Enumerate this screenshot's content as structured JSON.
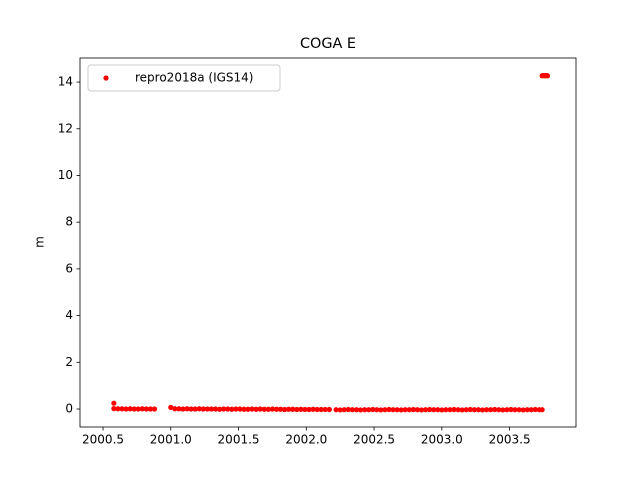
{
  "chart_data": {
    "type": "scatter",
    "title": "COGA E",
    "ylabel": "m",
    "legend": "upper left",
    "xlim": [
      2000.33,
      2003.99
    ],
    "ylim": [
      -0.77,
      15.03
    ],
    "xticks": [
      2000.5,
      {
        "value": 2001,
        "label": "2001.0"
      },
      2001.5,
      {
        "value": 2002,
        "label": "2002.0"
      },
      2002.5,
      {
        "value": 2003,
        "label": "2003.0"
      },
      2003.5
    ],
    "yticks": [
      0,
      2,
      4,
      6,
      8,
      10,
      12,
      14
    ],
    "series": [
      {
        "name": "repro2018a (IGS14)",
        "color": "#ff0000",
        "x": [
          2000.58,
          2000.58,
          2000.61,
          2000.64,
          2000.67,
          2000.7,
          2000.73,
          2000.76,
          2000.79,
          2000.82,
          2000.85,
          2000.88,
          2001.0,
          2001.03,
          2001.06,
          2001.09,
          2001.12,
          2001.15,
          2001.18,
          2001.21,
          2001.24,
          2001.27,
          2001.3,
          2001.33,
          2001.36,
          2001.39,
          2001.42,
          2001.45,
          2001.48,
          2001.51,
          2001.54,
          2001.57,
          2001.6,
          2001.63,
          2001.66,
          2001.69,
          2001.72,
          2001.75,
          2001.78,
          2001.81,
          2001.84,
          2001.87,
          2001.9,
          2001.93,
          2001.96,
          2001.99,
          2002.02,
          2002.05,
          2002.08,
          2002.11,
          2002.14,
          2002.17,
          2002.22,
          2002.25,
          2002.28,
          2002.31,
          2002.34,
          2002.37,
          2002.4,
          2002.43,
          2002.46,
          2002.49,
          2002.52,
          2002.55,
          2002.58,
          2002.61,
          2002.64,
          2002.67,
          2002.7,
          2002.73,
          2002.76,
          2002.79,
          2002.82,
          2002.85,
          2002.88,
          2002.91,
          2002.94,
          2002.97,
          2003.0,
          2003.03,
          2003.06,
          2003.09,
          2003.12,
          2003.15,
          2003.18,
          2003.21,
          2003.24,
          2003.27,
          2003.3,
          2003.33,
          2003.36,
          2003.39,
          2003.42,
          2003.45,
          2003.48,
          2003.51,
          2003.54,
          2003.57,
          2003.6,
          2003.63,
          2003.66,
          2003.69,
          2003.72,
          2003.74,
          2003.74,
          2003.75,
          2003.76,
          2003.77,
          2003.78
        ],
        "values": [
          0.25,
          0.02,
          0.01,
          0.01,
          0.0,
          0.01,
          0.0,
          0.0,
          0.01,
          0.0,
          0.0,
          0.0,
          0.07,
          0.01,
          0.01,
          0.0,
          0.01,
          0.0,
          0.0,
          0.01,
          0.0,
          0.0,
          0.0,
          0.0,
          -0.01,
          0.0,
          0.0,
          -0.01,
          0.0,
          0.0,
          -0.01,
          -0.01,
          0.0,
          -0.01,
          0.0,
          -0.01,
          -0.01,
          0.0,
          -0.01,
          -0.01,
          -0.02,
          -0.01,
          -0.01,
          -0.02,
          -0.01,
          -0.02,
          -0.02,
          -0.01,
          -0.02,
          -0.02,
          -0.02,
          -0.02,
          -0.03,
          -0.04,
          -0.03,
          -0.02,
          -0.03,
          -0.03,
          -0.04,
          -0.03,
          -0.03,
          -0.02,
          -0.03,
          -0.04,
          -0.03,
          -0.02,
          -0.03,
          -0.03,
          -0.04,
          -0.03,
          -0.03,
          -0.02,
          -0.03,
          -0.04,
          -0.03,
          -0.02,
          -0.03,
          -0.03,
          -0.04,
          -0.03,
          -0.03,
          -0.02,
          -0.03,
          -0.04,
          -0.03,
          -0.02,
          -0.03,
          -0.03,
          -0.04,
          -0.03,
          -0.03,
          -0.02,
          -0.03,
          -0.04,
          -0.03,
          -0.02,
          -0.03,
          -0.03,
          -0.04,
          -0.03,
          -0.03,
          -0.02,
          -0.03,
          -0.03,
          14.27,
          14.28,
          14.27,
          14.28,
          14.27
        ]
      }
    ]
  }
}
